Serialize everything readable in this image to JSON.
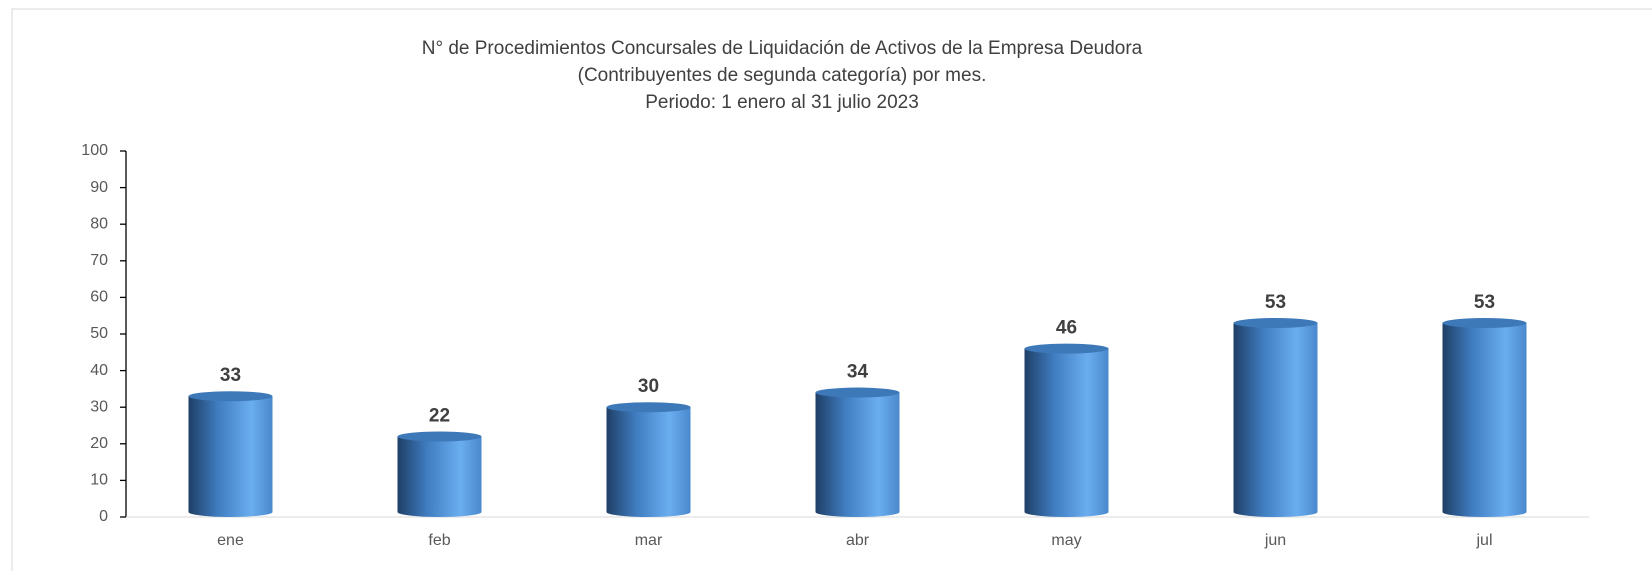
{
  "chart_data": {
    "type": "bar",
    "title": [
      "N° de Procedimientos Concursales de Liquidación de Activos de la Empresa Deudora",
      "(Contribuyentes de segunda categoría) por mes.",
      "Periodo: 1 enero al 31 julio 2023"
    ],
    "categories": [
      "ene",
      "feb",
      "mar",
      "abr",
      "may",
      "jun",
      "jul"
    ],
    "values": [
      33,
      22,
      30,
      34,
      46,
      53,
      53
    ],
    "color": "#5b9bd5",
    "ylim": [
      0,
      100
    ],
    "yticks": [
      0,
      10,
      20,
      30,
      40,
      50,
      60,
      70,
      80,
      90,
      100
    ],
    "grid": false
  }
}
